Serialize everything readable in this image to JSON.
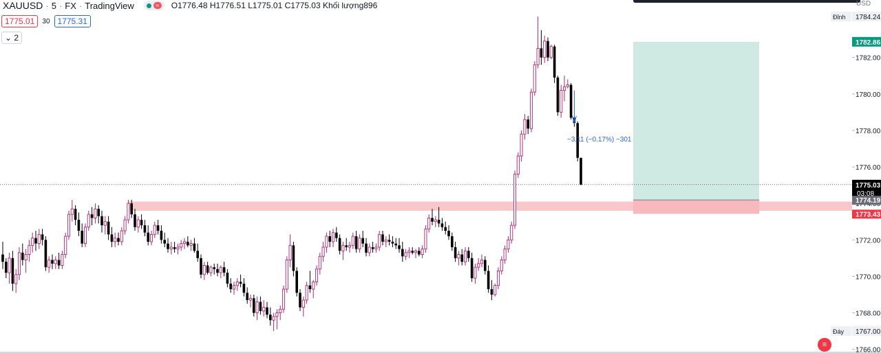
{
  "header": {
    "symbol": "XAUUSD",
    "interval": "5",
    "source": "FX",
    "platform": "TradingView",
    "separator": "·",
    "ohlc": "O1776.48 H1776.51 L1775.01 C1775.03 Khối lượng896",
    "sell_price": "1775.01",
    "spread": "30",
    "buy_price": "1775.31",
    "indicator_toggle": "2",
    "currency": "USD",
    "status_badge": "≈"
  },
  "colors": {
    "bull_border": "#b5236f",
    "bear_body": "#000000",
    "doji": "#f0b232",
    "target_zone": "#cfeae3",
    "target_label": "#089981",
    "resistance_zone": "#f7b9bd",
    "stop_label": "#f23645",
    "arrow": "#2962ff",
    "last_price_label": "#000000"
  },
  "chart_data": {
    "type": "candlestick",
    "y_axis": {
      "ylim": [
        1765.8,
        1785.15
      ],
      "ticks": [
        1766,
        1768,
        1770,
        1772,
        1774,
        1776,
        1778,
        1780,
        1782
      ],
      "tick_labels": [
        "1766.00",
        "1768.00",
        "1770.00",
        "1772.00",
        "1774.00",
        "1776.00",
        "1778.00",
        "1780.00",
        "1782.00"
      ],
      "max_label": "Đỉnh",
      "max_value": "1784.24",
      "min_label": "Đáy",
      "min_value": "1767.00"
    },
    "price_labels": {
      "last_price": "1775.03",
      "countdown": "03:08",
      "target": "1782.86",
      "entry": "1774.19",
      "stop": "1773.43"
    },
    "position_tool": {
      "entry": 1774.19,
      "target": 1782.86,
      "stop": 1773.43
    },
    "zone": {
      "low": 1773.6,
      "high": 1774.1
    },
    "annotation": {
      "text": "−3.11 (−0.17%) −301"
    },
    "candles": [
      [
        1771.2,
        1771.9,
        1770.4,
        1770.8
      ],
      [
        1770.8,
        1771.0,
        1769.9,
        1770.2
      ],
      [
        1770.2,
        1771.3,
        1769.6,
        1771.0
      ],
      [
        1771.0,
        1771.4,
        1769.2,
        1769.6
      ],
      [
        1769.6,
        1770.4,
        1769.1,
        1770.1
      ],
      [
        1770.1,
        1771.6,
        1769.8,
        1771.3
      ],
      [
        1771.3,
        1771.8,
        1770.6,
        1770.9
      ],
      [
        1770.9,
        1771.5,
        1770.2,
        1771.2
      ],
      [
        1771.2,
        1772.0,
        1770.8,
        1771.7
      ],
      [
        1771.7,
        1772.4,
        1771.3,
        1772.1
      ],
      [
        1772.1,
        1772.5,
        1771.4,
        1771.8
      ],
      [
        1771.8,
        1772.6,
        1771.5,
        1772.3
      ],
      [
        1772.3,
        1772.6,
        1771.7,
        1772.0
      ],
      [
        1772.0,
        1772.2,
        1770.3,
        1770.5
      ],
      [
        1770.5,
        1771.1,
        1770.2,
        1770.9
      ],
      [
        1770.9,
        1771.2,
        1770.4,
        1770.7
      ],
      [
        1770.7,
        1771.1,
        1770.4,
        1770.9
      ],
      [
        1770.9,
        1771.3,
        1770.4,
        1770.6
      ],
      [
        1770.6,
        1771.4,
        1770.4,
        1771.2
      ],
      [
        1771.2,
        1772.4,
        1771.0,
        1772.2
      ],
      [
        1772.2,
        1773.6,
        1772.0,
        1773.4
      ],
      [
        1773.4,
        1774.2,
        1773.0,
        1773.7
      ],
      [
        1773.7,
        1773.9,
        1772.8,
        1773.1
      ],
      [
        1773.1,
        1773.5,
        1772.2,
        1772.5
      ],
      [
        1772.5,
        1772.9,
        1771.6,
        1771.8
      ],
      [
        1771.8,
        1772.9,
        1771.6,
        1772.7
      ],
      [
        1772.7,
        1773.6,
        1772.5,
        1773.4
      ],
      [
        1773.4,
        1773.8,
        1772.8,
        1773.2
      ],
      [
        1773.2,
        1774.0,
        1772.9,
        1773.7
      ],
      [
        1773.7,
        1773.9,
        1772.9,
        1773.3
      ],
      [
        1773.3,
        1773.6,
        1772.4,
        1772.8
      ],
      [
        1772.8,
        1773.3,
        1772.3,
        1773.0
      ],
      [
        1773.0,
        1773.3,
        1772.0,
        1772.3
      ],
      [
        1772.3,
        1772.7,
        1771.6,
        1771.9
      ],
      [
        1771.9,
        1772.4,
        1771.6,
        1772.1
      ],
      [
        1772.1,
        1772.4,
        1771.7,
        1771.9
      ],
      [
        1771.9,
        1772.7,
        1771.7,
        1772.5
      ],
      [
        1772.5,
        1773.3,
        1772.3,
        1773.1
      ],
      [
        1773.1,
        1774.2,
        1772.9,
        1774.0
      ],
      [
        1774.0,
        1774.2,
        1773.2,
        1773.4
      ],
      [
        1773.4,
        1773.7,
        1772.5,
        1772.7
      ],
      [
        1772.7,
        1773.3,
        1772.4,
        1773.1
      ],
      [
        1773.1,
        1773.4,
        1772.6,
        1772.8
      ],
      [
        1772.8,
        1773.1,
        1772.2,
        1772.4
      ],
      [
        1772.4,
        1772.8,
        1771.7,
        1771.9
      ],
      [
        1771.9,
        1772.5,
        1771.7,
        1772.3
      ],
      [
        1772.3,
        1773.0,
        1772.1,
        1772.8
      ],
      [
        1772.8,
        1773.1,
        1772.3,
        1772.5
      ],
      [
        1772.5,
        1772.8,
        1771.8,
        1772.0
      ],
      [
        1772.0,
        1772.4,
        1771.6,
        1771.8
      ],
      [
        1771.8,
        1772.1,
        1771.3,
        1771.5
      ],
      [
        1771.5,
        1771.9,
        1771.2,
        1771.6
      ],
      [
        1771.6,
        1771.9,
        1771.3,
        1771.5
      ],
      [
        1771.5,
        1771.8,
        1771.2,
        1771.6
      ],
      [
        1771.6,
        1772.0,
        1771.4,
        1771.8
      ],
      [
        1771.8,
        1772.1,
        1771.5,
        1771.9
      ],
      [
        1771.9,
        1772.2,
        1771.6,
        1771.7
      ],
      [
        1771.7,
        1772.0,
        1771.4,
        1771.8
      ],
      [
        1771.8,
        1772.1,
        1771.3,
        1771.4
      ],
      [
        1771.4,
        1771.8,
        1770.8,
        1771.0
      ],
      [
        1771.0,
        1771.2,
        1769.9,
        1770.1
      ],
      [
        1770.1,
        1770.8,
        1769.8,
        1770.6
      ],
      [
        1770.6,
        1770.8,
        1770.1,
        1770.2
      ],
      [
        1770.2,
        1770.6,
        1770.0,
        1770.5
      ],
      [
        1770.5,
        1770.7,
        1770.1,
        1770.4
      ],
      [
        1770.4,
        1770.7,
        1770.0,
        1770.2
      ],
      [
        1770.2,
        1770.6,
        1769.9,
        1770.5
      ],
      [
        1770.5,
        1770.8,
        1770.0,
        1770.2
      ],
      [
        1770.2,
        1770.4,
        1769.4,
        1769.6
      ],
      [
        1769.6,
        1769.9,
        1769.1,
        1769.3
      ],
      [
        1769.3,
        1769.7,
        1769.0,
        1769.5
      ],
      [
        1769.5,
        1769.9,
        1769.2,
        1769.7
      ],
      [
        1769.7,
        1770.1,
        1769.4,
        1769.6
      ],
      [
        1769.6,
        1769.9,
        1768.9,
        1769.1
      ],
      [
        1769.1,
        1769.4,
        1768.5,
        1768.7
      ],
      [
        1768.7,
        1769.0,
        1768.3,
        1768.8
      ],
      [
        1768.8,
        1769.0,
        1767.8,
        1768.0
      ],
      [
        1768.0,
        1768.9,
        1767.6,
        1768.6
      ],
      [
        1768.6,
        1768.9,
        1767.9,
        1768.1
      ],
      [
        1768.1,
        1768.7,
        1767.8,
        1768.3
      ],
      [
        1768.3,
        1768.6,
        1767.7,
        1767.9
      ],
      [
        1767.9,
        1768.3,
        1767.3,
        1767.6
      ],
      [
        1767.6,
        1768.0,
        1767.0,
        1767.8
      ],
      [
        1767.8,
        1768.2,
        1767.1,
        1768.0
      ],
      [
        1768.0,
        1768.4,
        1767.6,
        1768.2
      ],
      [
        1768.2,
        1769.5,
        1768.0,
        1769.3
      ],
      [
        1769.3,
        1771.1,
        1769.1,
        1770.9
      ],
      [
        1770.9,
        1772.3,
        1770.5,
        1771.7
      ],
      [
        1771.7,
        1771.9,
        1770.0,
        1770.3
      ],
      [
        1770.3,
        1770.5,
        1768.9,
        1769.1
      ],
      [
        1769.1,
        1769.3,
        1768.1,
        1768.3
      ],
      [
        1768.3,
        1768.9,
        1767.8,
        1768.7
      ],
      [
        1768.7,
        1769.7,
        1768.5,
        1769.5
      ],
      [
        1769.5,
        1770.3,
        1769.1,
        1769.3
      ],
      [
        1769.3,
        1769.8,
        1768.8,
        1769.7
      ],
      [
        1769.7,
        1770.6,
        1769.5,
        1770.4
      ],
      [
        1770.4,
        1771.3,
        1770.1,
        1771.1
      ],
      [
        1771.1,
        1771.9,
        1770.8,
        1771.6
      ],
      [
        1771.6,
        1772.4,
        1771.3,
        1772.2
      ],
      [
        1772.2,
        1772.5,
        1771.6,
        1771.9
      ],
      [
        1771.9,
        1772.6,
        1771.6,
        1772.4
      ],
      [
        1772.4,
        1772.7,
        1771.9,
        1772.1
      ],
      [
        1772.1,
        1772.3,
        1771.2,
        1771.4
      ],
      [
        1771.4,
        1771.9,
        1770.9,
        1771.7
      ],
      [
        1771.7,
        1772.1,
        1771.4,
        1771.6
      ],
      [
        1771.6,
        1771.9,
        1771.3,
        1771.7
      ],
      [
        1771.7,
        1772.4,
        1771.5,
        1772.2
      ],
      [
        1772.2,
        1772.5,
        1771.3,
        1771.5
      ],
      [
        1771.5,
        1772.3,
        1771.3,
        1772.1
      ],
      [
        1772.1,
        1772.5,
        1771.6,
        1771.8
      ],
      [
        1771.8,
        1772.1,
        1771.1,
        1771.3
      ],
      [
        1771.3,
        1771.8,
        1771.1,
        1771.6
      ],
      [
        1771.6,
        1771.9,
        1771.3,
        1771.5
      ],
      [
        1771.5,
        1771.8,
        1771.3,
        1771.6
      ],
      [
        1771.6,
        1772.5,
        1771.4,
        1772.3
      ],
      [
        1772.3,
        1772.5,
        1771.7,
        1771.9
      ],
      [
        1771.9,
        1772.2,
        1771.6,
        1772.0
      ],
      [
        1772.0,
        1772.3,
        1771.7,
        1771.9
      ],
      [
        1771.9,
        1772.2,
        1771.6,
        1771.8
      ],
      [
        1771.8,
        1772.1,
        1771.5,
        1771.7
      ],
      [
        1771.7,
        1772.1,
        1771.3,
        1771.5
      ],
      [
        1771.5,
        1771.9,
        1770.8,
        1771.1
      ],
      [
        1771.1,
        1771.5,
        1770.9,
        1771.3
      ],
      [
        1771.3,
        1771.6,
        1771.0,
        1771.4
      ],
      [
        1771.4,
        1771.6,
        1771.2,
        1771.3
      ],
      [
        1771.3,
        1771.5,
        1771.0,
        1771.4
      ],
      [
        1771.4,
        1771.6,
        1771.1,
        1771.2
      ],
      [
        1771.2,
        1771.7,
        1771.0,
        1771.5
      ],
      [
        1771.5,
        1772.8,
        1771.3,
        1772.6
      ],
      [
        1772.6,
        1773.4,
        1772.4,
        1773.2
      ],
      [
        1773.2,
        1773.7,
        1772.8,
        1773.0
      ],
      [
        1773.0,
        1773.3,
        1772.7,
        1773.1
      ],
      [
        1773.1,
        1773.8,
        1772.7,
        1772.9
      ],
      [
        1772.9,
        1773.2,
        1772.5,
        1772.7
      ],
      [
        1772.7,
        1773.0,
        1772.3,
        1772.5
      ],
      [
        1772.5,
        1772.8,
        1772.0,
        1772.2
      ],
      [
        1772.2,
        1772.4,
        1771.4,
        1771.6
      ],
      [
        1771.6,
        1771.9,
        1770.8,
        1771.0
      ],
      [
        1771.0,
        1771.4,
        1770.6,
        1771.2
      ],
      [
        1771.2,
        1771.5,
        1770.6,
        1770.8
      ],
      [
        1770.8,
        1771.6,
        1770.6,
        1771.4
      ],
      [
        1771.4,
        1771.6,
        1770.8,
        1771.0
      ],
      [
        1771.0,
        1771.3,
        1769.7,
        1769.9
      ],
      [
        1769.9,
        1770.7,
        1769.6,
        1770.5
      ],
      [
        1770.5,
        1771.0,
        1770.3,
        1770.7
      ],
      [
        1770.7,
        1771.2,
        1770.5,
        1770.9
      ],
      [
        1770.9,
        1771.1,
        1770.1,
        1770.3
      ],
      [
        1770.3,
        1770.6,
        1769.1,
        1769.3
      ],
      [
        1769.3,
        1769.8,
        1768.7,
        1769.0
      ],
      [
        1769.0,
        1769.6,
        1768.9,
        1769.5
      ],
      [
        1769.5,
        1770.5,
        1769.3,
        1770.3
      ],
      [
        1770.3,
        1771.1,
        1770.1,
        1770.9
      ],
      [
        1770.9,
        1771.7,
        1770.7,
        1771.5
      ],
      [
        1771.5,
        1772.2,
        1771.3,
        1772.0
      ],
      [
        1772.0,
        1773.0,
        1771.8,
        1772.8
      ],
      [
        1772.8,
        1775.8,
        1772.6,
        1775.6
      ],
      [
        1775.6,
        1776.8,
        1775.4,
        1776.6
      ],
      [
        1776.6,
        1778.0,
        1776.3,
        1777.8
      ],
      [
        1777.8,
        1778.9,
        1777.5,
        1778.6
      ],
      [
        1778.6,
        1778.8,
        1777.8,
        1778.1
      ],
      [
        1778.1,
        1780.3,
        1777.9,
        1780.1
      ],
      [
        1780.1,
        1781.8,
        1779.9,
        1781.6
      ],
      [
        1781.6,
        1784.24,
        1781.4,
        1782.5
      ],
      [
        1782.5,
        1783.5,
        1781.6,
        1782.0
      ],
      [
        1782.0,
        1783.2,
        1781.7,
        1782.9
      ],
      [
        1782.9,
        1783.1,
        1781.8,
        1782.0
      ],
      [
        1782.0,
        1782.7,
        1781.9,
        1782.6
      ],
      [
        1782.6,
        1782.7,
        1780.6,
        1780.9
      ],
      [
        1780.9,
        1781.0,
        1778.8,
        1779.0
      ],
      [
        1779.0,
        1780.5,
        1778.7,
        1780.2
      ],
      [
        1780.2,
        1781.0,
        1779.6,
        1780.4
      ],
      [
        1780.4,
        1780.8,
        1780.3,
        1780.5
      ],
      [
        1780.5,
        1780.6,
        1778.6,
        1778.7
      ],
      [
        1778.7,
        1778.8,
        1778.2,
        1778.4
      ],
      [
        1778.4,
        1778.5,
        1776.3,
        1776.5
      ],
      [
        1776.5,
        1776.5,
        1775.0,
        1775.03
      ]
    ]
  }
}
